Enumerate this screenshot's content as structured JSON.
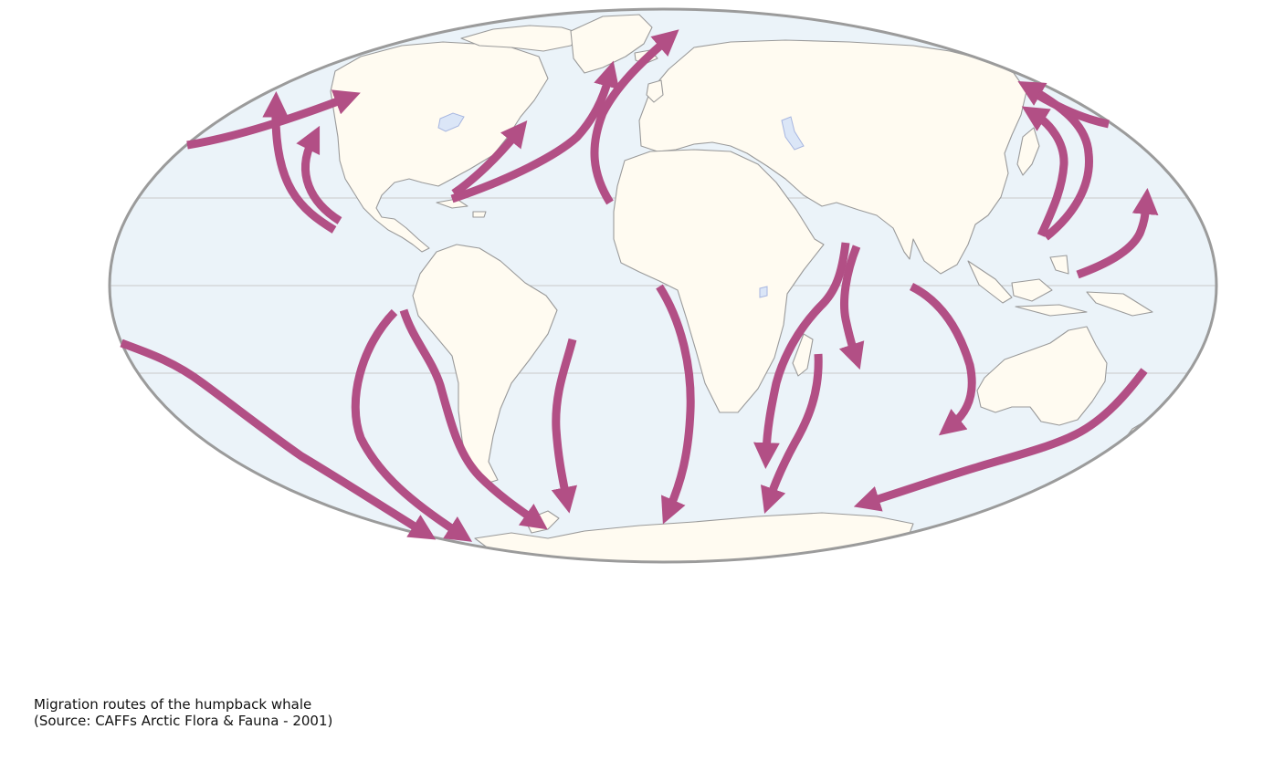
{
  "caption": {
    "line1": "Migration routes of the humpback whale",
    "line2": "(Source: CAFFs Arctic Flora & Fauna - 2001)"
  },
  "map": {
    "projection": "Mollweide",
    "colors": {
      "ocean": "#ebf3f9",
      "land": "#fffbf1",
      "coast": "#9a9a9a",
      "border": "#9b9b9b",
      "lake": "#dbe6f7",
      "route": "#b24f85"
    },
    "routes": [
      {
        "id": "ne-pacific-west"
      },
      {
        "id": "ne-pacific-mexico-north"
      },
      {
        "id": "ne-pacific-mexico-inner"
      },
      {
        "id": "caribbean-to-newfoundland"
      },
      {
        "id": "caribbean-to-greenland"
      },
      {
        "id": "westafrica-to-norway"
      },
      {
        "id": "south-pacific-long"
      },
      {
        "id": "peru-loop"
      },
      {
        "id": "chile-coast"
      },
      {
        "id": "brazil-south"
      },
      {
        "id": "gulf-guinea-south"
      },
      {
        "id": "arabian-sea-to-moz"
      },
      {
        "id": "arabian-sea-south"
      },
      {
        "id": "madagascar-south"
      },
      {
        "id": "sumatra-to-wa"
      },
      {
        "id": "east-australia-to-antarctica"
      },
      {
        "id": "new-guinea-north"
      },
      {
        "id": "philippines-to-kamchatka"
      },
      {
        "id": "philippines-to-bering"
      }
    ]
  }
}
